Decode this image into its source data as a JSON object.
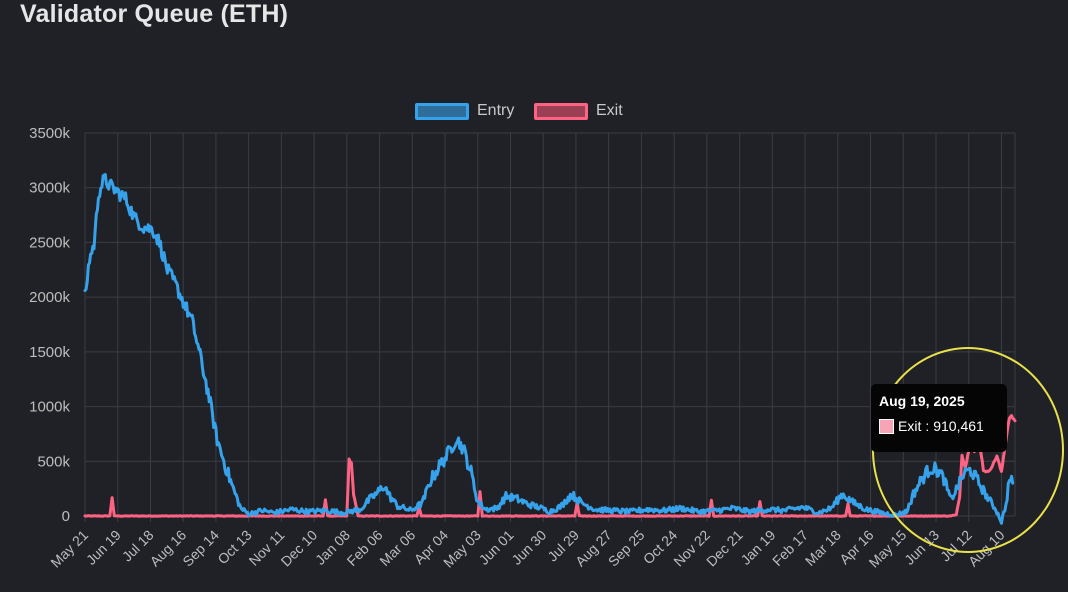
{
  "title": "Validator Queue (ETH)",
  "legend": [
    {
      "label": "Entry",
      "color": "#36a2eb",
      "fill": "#2f6e9b"
    },
    {
      "label": "Exit",
      "color": "#ff6384",
      "fill": "#9b3f55"
    }
  ],
  "tooltip": {
    "date": "Aug 19, 2025",
    "series": "Exit",
    "value_text": "910,461",
    "swatch_color": "#f7a4b6"
  },
  "annotation": {
    "type": "highlight-circle",
    "color": "#e8e14b"
  },
  "chart_data": {
    "type": "line",
    "title": "Validator Queue (ETH)",
    "xlabel": "",
    "ylabel": "",
    "ylim": [
      0,
      3500000
    ],
    "y_ticks": [
      0,
      500000,
      1000000,
      1500000,
      2000000,
      2500000,
      3000000,
      3500000
    ],
    "y_tick_labels": [
      "0",
      "500k",
      "1000k",
      "1500k",
      "2000k",
      "2500k",
      "3000k",
      "3500k"
    ],
    "x_range": [
      "2023-05-21",
      "2025-08-22"
    ],
    "x_ticks": [
      "2023-05-21",
      "2023-06-19",
      "2023-07-18",
      "2023-08-16",
      "2023-09-14",
      "2023-10-13",
      "2023-11-11",
      "2023-12-10",
      "2024-01-08",
      "2024-02-06",
      "2024-03-06",
      "2024-04-04",
      "2024-05-03",
      "2024-06-01",
      "2024-06-30",
      "2024-07-29",
      "2024-08-27",
      "2024-09-25",
      "2024-10-24",
      "2024-11-22",
      "2024-12-21",
      "2025-01-19",
      "2025-02-17",
      "2025-03-18",
      "2025-04-16",
      "2025-05-15",
      "2025-06-13",
      "2025-07-12",
      "2025-08-10"
    ],
    "x_tick_labels": [
      "May 21",
      "Jun 19",
      "Jul 18",
      "Aug 16",
      "Sep 14",
      "Oct 13",
      "Nov 11",
      "Dec 10",
      "Jan 08",
      "Feb 06",
      "Mar 06",
      "Apr 04",
      "May 03",
      "Jun 01",
      "Jun 30",
      "Jul 29",
      "Aug 27",
      "Sep 25",
      "Oct 24",
      "Nov 22",
      "Dec 21",
      "Jan 19",
      "Feb 17",
      "Mar 18",
      "Apr 16",
      "May 15",
      "Jun 13",
      "Jul 12",
      "Aug 10"
    ],
    "grid": true,
    "legend_position": "top-center",
    "series": [
      {
        "name": "Entry",
        "color": "#36a2eb",
        "points": [
          [
            "2023-05-21",
            2000000
          ],
          [
            "2023-05-25",
            2350000
          ],
          [
            "2023-05-29",
            2480000
          ],
          [
            "2023-06-02",
            2950000
          ],
          [
            "2023-06-07",
            3080000
          ],
          [
            "2023-06-12",
            3020000
          ],
          [
            "2023-06-19",
            2960000
          ],
          [
            "2023-06-26",
            2900000
          ],
          [
            "2023-07-04",
            2720000
          ],
          [
            "2023-07-12",
            2640000
          ],
          [
            "2023-07-20",
            2620000
          ],
          [
            "2023-07-26",
            2500000
          ],
          [
            "2023-08-02",
            2250000
          ],
          [
            "2023-08-10",
            2100000
          ],
          [
            "2023-08-16",
            1960000
          ],
          [
            "2023-08-24",
            1780000
          ],
          [
            "2023-09-01",
            1420000
          ],
          [
            "2023-09-08",
            1080000
          ],
          [
            "2023-09-15",
            700000
          ],
          [
            "2023-09-22",
            470000
          ],
          [
            "2023-09-29",
            260000
          ],
          [
            "2023-10-06",
            70000
          ],
          [
            "2023-10-13",
            20000
          ],
          [
            "2023-10-25",
            50000
          ],
          [
            "2023-11-05",
            30000
          ],
          [
            "2023-11-20",
            60000
          ],
          [
            "2023-12-05",
            40000
          ],
          [
            "2023-12-20",
            50000
          ],
          [
            "2024-01-05",
            30000
          ],
          [
            "2024-01-20",
            60000
          ],
          [
            "2024-01-28",
            150000
          ],
          [
            "2024-02-04",
            210000
          ],
          [
            "2024-02-10",
            280000
          ],
          [
            "2024-02-15",
            180000
          ],
          [
            "2024-02-22",
            90000
          ],
          [
            "2024-03-05",
            50000
          ],
          [
            "2024-03-15",
            120000
          ],
          [
            "2024-03-22",
            320000
          ],
          [
            "2024-03-29",
            440000
          ],
          [
            "2024-04-06",
            560000
          ],
          [
            "2024-04-14",
            710000
          ],
          [
            "2024-04-20",
            620000
          ],
          [
            "2024-04-27",
            400000
          ],
          [
            "2024-05-03",
            130000
          ],
          [
            "2024-05-10",
            60000
          ],
          [
            "2024-05-20",
            70000
          ],
          [
            "2024-05-28",
            180000
          ],
          [
            "2024-06-06",
            160000
          ],
          [
            "2024-06-16",
            110000
          ],
          [
            "2024-06-26",
            80000
          ],
          [
            "2024-07-06",
            40000
          ],
          [
            "2024-07-16",
            90000
          ],
          [
            "2024-07-25",
            200000
          ],
          [
            "2024-08-03",
            120000
          ],
          [
            "2024-08-15",
            60000
          ],
          [
            "2024-08-30",
            50000
          ],
          [
            "2024-09-15",
            40000
          ],
          [
            "2024-09-30",
            60000
          ],
          [
            "2024-10-15",
            50000
          ],
          [
            "2024-10-30",
            70000
          ],
          [
            "2024-11-15",
            40000
          ],
          [
            "2024-11-30",
            50000
          ],
          [
            "2024-12-15",
            70000
          ],
          [
            "2024-12-30",
            40000
          ],
          [
            "2025-01-15",
            60000
          ],
          [
            "2025-01-30",
            50000
          ],
          [
            "2025-02-15",
            80000
          ],
          [
            "2025-03-01",
            30000
          ],
          [
            "2025-03-12",
            70000
          ],
          [
            "2025-03-22",
            200000
          ],
          [
            "2025-04-01",
            120000
          ],
          [
            "2025-04-12",
            60000
          ],
          [
            "2025-04-25",
            30000
          ],
          [
            "2025-05-08",
            10000
          ],
          [
            "2025-05-18",
            40000
          ],
          [
            "2025-05-24",
            200000
          ],
          [
            "2025-05-31",
            330000
          ],
          [
            "2025-06-08",
            440000
          ],
          [
            "2025-06-14",
            420000
          ],
          [
            "2025-06-20",
            340000
          ],
          [
            "2025-06-26",
            150000
          ],
          [
            "2025-07-02",
            260000
          ],
          [
            "2025-07-08",
            390000
          ],
          [
            "2025-07-14",
            420000
          ],
          [
            "2025-07-20",
            320000
          ],
          [
            "2025-07-28",
            180000
          ],
          [
            "2025-08-05",
            60000
          ],
          [
            "2025-08-10",
            -50000
          ],
          [
            "2025-08-14",
            100000
          ],
          [
            "2025-08-17",
            340000
          ],
          [
            "2025-08-20",
            300000
          ]
        ]
      },
      {
        "name": "Exit",
        "color": "#ff6384",
        "points": [
          [
            "2023-05-21",
            0
          ],
          [
            "2023-06-12",
            0
          ],
          [
            "2023-06-14",
            170000
          ],
          [
            "2023-06-16",
            0
          ],
          [
            "2023-10-13",
            0
          ],
          [
            "2023-12-18",
            0
          ],
          [
            "2023-12-20",
            150000
          ],
          [
            "2023-12-22",
            0
          ],
          [
            "2024-01-08",
            0
          ],
          [
            "2024-01-10",
            520000
          ],
          [
            "2024-01-12",
            480000
          ],
          [
            "2024-01-14",
            200000
          ],
          [
            "2024-01-18",
            0
          ],
          [
            "2024-03-10",
            0
          ],
          [
            "2024-03-12",
            80000
          ],
          [
            "2024-03-14",
            0
          ],
          [
            "2024-05-03",
            0
          ],
          [
            "2024-05-05",
            220000
          ],
          [
            "2024-05-07",
            0
          ],
          [
            "2024-07-28",
            0
          ],
          [
            "2024-07-30",
            120000
          ],
          [
            "2024-08-01",
            0
          ],
          [
            "2024-11-24",
            0
          ],
          [
            "2024-11-26",
            140000
          ],
          [
            "2024-11-28",
            0
          ],
          [
            "2025-01-06",
            0
          ],
          [
            "2025-01-08",
            130000
          ],
          [
            "2025-01-10",
            0
          ],
          [
            "2025-03-25",
            0
          ],
          [
            "2025-03-27",
            110000
          ],
          [
            "2025-03-29",
            0
          ],
          [
            "2025-06-25",
            0
          ],
          [
            "2025-07-01",
            10000
          ],
          [
            "2025-07-04",
            180000
          ],
          [
            "2025-07-06",
            560000
          ],
          [
            "2025-07-09",
            440000
          ],
          [
            "2025-07-13",
            650000
          ],
          [
            "2025-07-17",
            590000
          ],
          [
            "2025-07-21",
            720000
          ],
          [
            "2025-07-25",
            420000
          ],
          [
            "2025-07-29",
            400000
          ],
          [
            "2025-08-02",
            460000
          ],
          [
            "2025-08-06",
            550000
          ],
          [
            "2025-08-10",
            400000
          ],
          [
            "2025-08-14",
            700000
          ],
          [
            "2025-08-17",
            900000
          ],
          [
            "2025-08-19",
            910461
          ],
          [
            "2025-08-22",
            870000
          ]
        ]
      }
    ]
  }
}
